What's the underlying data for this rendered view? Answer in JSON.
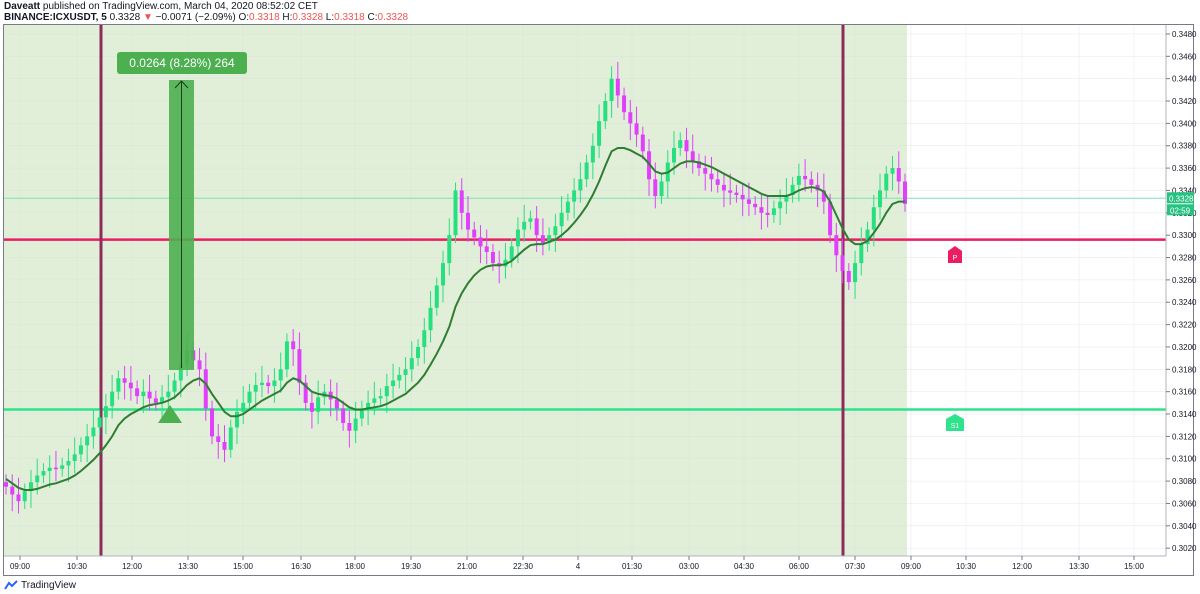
{
  "header": {
    "author": "Daveatt",
    "published_text": "published on TradingView.com, March 04, 2020 08:52:02 CET",
    "symbol": "BINANCE:ICXUSDT, 5",
    "last_price": "0.3328",
    "change": "−0.0071 (−2.09%)",
    "ohlc_o_label": "O:",
    "ohlc_o": "0.3318",
    "ohlc_h_label": "H:",
    "ohlc_h": "0.3328",
    "ohlc_l_label": "L:",
    "ohlc_l": "0.3318",
    "ohlc_c_label": "C:",
    "ohlc_c": "0.3328"
  },
  "footer": {
    "brand": "TradingView"
  },
  "colors": {
    "bull": "#26e07f",
    "bear": "#e040fb",
    "ma": "#2e7d32",
    "session_bg": "#e1efd9",
    "pivot": "#e91e63",
    "support": "#2ee38b",
    "session_line": "#8e2b5c",
    "measure": "#4caf50",
    "price_label": "#26c281"
  },
  "chart_data": {
    "type": "candlestick",
    "y_axis_ticks": [
      "0.3480",
      "0.3460",
      "0.3440",
      "0.3420",
      "0.3400",
      "0.3380",
      "0.3360",
      "0.3340",
      "0.3320",
      "0.3300",
      "0.3280",
      "0.3260",
      "0.3240",
      "0.3220",
      "0.3200",
      "0.3180",
      "0.3160",
      "0.3140",
      "0.3120",
      "0.3100",
      "0.3080",
      "0.3060",
      "0.3040",
      "0.3020"
    ],
    "ylim": [
      0.3013,
      0.3488
    ],
    "x_axis_ticks": [
      "09:00",
      "10:30",
      "12:00",
      "13:30",
      "15:00",
      "16:30",
      "18:00",
      "19:30",
      "21:00",
      "22:30",
      "4",
      "01:30",
      "03:00",
      "04:30",
      "06:00",
      "07:30",
      "09:00",
      "10:30",
      "12:00",
      "13:30",
      "15:00"
    ],
    "current_price_label": "0.3328",
    "countdown_label": "02:59",
    "measure_label": "0.0264 (8.28%) 264",
    "pivot_label": "P",
    "pivot_level": 0.3296,
    "support_label": "S1",
    "support_level": 0.3144,
    "current_level": 0.3333,
    "close_series": [
      0.3075,
      0.3068,
      0.3062,
      0.3071,
      0.3079,
      0.3085,
      0.3089,
      0.3092,
      0.3091,
      0.3094,
      0.3098,
      0.3104,
      0.3112,
      0.312,
      0.3128,
      0.3137,
      0.3147,
      0.316,
      0.3172,
      0.3168,
      0.3163,
      0.3156,
      0.316,
      0.3154,
      0.315,
      0.3155,
      0.316,
      0.317,
      0.3185,
      0.3197,
      0.3188,
      0.318,
      0.3145,
      0.312,
      0.3115,
      0.3108,
      0.3128,
      0.3142,
      0.315,
      0.316,
      0.3166,
      0.3168,
      0.3165,
      0.317,
      0.318,
      0.3205,
      0.3198,
      0.3168,
      0.315,
      0.3142,
      0.3155,
      0.316,
      0.3153,
      0.3145,
      0.3132,
      0.3125,
      0.3136,
      0.3145,
      0.315,
      0.3154,
      0.3156,
      0.3165,
      0.317,
      0.3175,
      0.318,
      0.319,
      0.32,
      0.3215,
      0.3235,
      0.3255,
      0.3275,
      0.33,
      0.334,
      0.332,
      0.3305,
      0.3298,
      0.329,
      0.3285,
      0.3275,
      0.3272,
      0.3278,
      0.329,
      0.3305,
      0.3312,
      0.3315,
      0.33,
      0.3293,
      0.33,
      0.3308,
      0.332,
      0.333,
      0.334,
      0.335,
      0.3365,
      0.338,
      0.3402,
      0.342,
      0.344,
      0.3425,
      0.341,
      0.34,
      0.339,
      0.3375,
      0.335,
      0.3335,
      0.3348,
      0.3365,
      0.3378,
      0.3385,
      0.3375,
      0.3366,
      0.336,
      0.3355,
      0.335,
      0.3345,
      0.334,
      0.3338,
      0.3336,
      0.3332,
      0.3328,
      0.3325,
      0.332,
      0.3318,
      0.3324,
      0.333,
      0.3336,
      0.3345,
      0.3353,
      0.335,
      0.3345,
      0.334,
      0.333,
      0.33,
      0.3282,
      0.3268,
      0.3258,
      0.3275,
      0.3292,
      0.3305,
      0.3325,
      0.334,
      0.3355,
      0.336,
      0.3348,
      0.3328
    ],
    "ma_series": [
      0.3082,
      0.3078,
      0.3074,
      0.3072,
      0.3072,
      0.3073,
      0.3075,
      0.3077,
      0.3078,
      0.308,
      0.3082,
      0.3085,
      0.3089,
      0.3094,
      0.3099,
      0.3105,
      0.3112,
      0.312,
      0.313,
      0.3136,
      0.314,
      0.3143,
      0.3146,
      0.3148,
      0.3149,
      0.315,
      0.3152,
      0.3155,
      0.316,
      0.3166,
      0.317,
      0.3172,
      0.3167,
      0.3158,
      0.315,
      0.3142,
      0.3138,
      0.3138,
      0.314,
      0.3144,
      0.3148,
      0.3152,
      0.3155,
      0.3158,
      0.3161,
      0.3168,
      0.3172,
      0.317,
      0.3165,
      0.316,
      0.3158,
      0.3157,
      0.3156,
      0.3154,
      0.315,
      0.3146,
      0.3144,
      0.3144,
      0.3145,
      0.3146,
      0.3147,
      0.3149,
      0.3152,
      0.3155,
      0.3158,
      0.3163,
      0.3168,
      0.3175,
      0.3184,
      0.3194,
      0.3205,
      0.3218,
      0.3236,
      0.3248,
      0.3257,
      0.3264,
      0.3269,
      0.3272,
      0.3273,
      0.3273,
      0.3274,
      0.3277,
      0.3282,
      0.3287,
      0.3291,
      0.3292,
      0.3292,
      0.3294,
      0.3296,
      0.33,
      0.3305,
      0.3311,
      0.3318,
      0.3326,
      0.3336,
      0.3348,
      0.3362,
      0.3375,
      0.3378,
      0.3378,
      0.3376,
      0.3373,
      0.337,
      0.3364,
      0.3357,
      0.3355,
      0.3356,
      0.336,
      0.3364,
      0.3366,
      0.3366,
      0.3365,
      0.3363,
      0.3361,
      0.3358,
      0.3355,
      0.3352,
      0.3349,
      0.3346,
      0.3343,
      0.334,
      0.3337,
      0.3335,
      0.3335,
      0.3335,
      0.3335,
      0.3337,
      0.334,
      0.3342,
      0.3343,
      0.3342,
      0.3339,
      0.333,
      0.3318,
      0.3306,
      0.3296,
      0.3292,
      0.3292,
      0.3295,
      0.3302,
      0.331,
      0.332,
      0.3328,
      0.333,
      0.333
    ]
  }
}
